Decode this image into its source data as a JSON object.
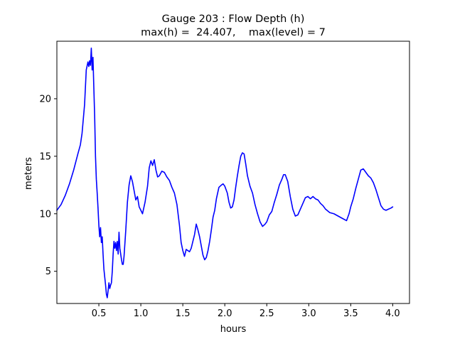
{
  "chart_data": {
    "type": "line",
    "title_line1": "Gauge 203 : Flow Depth (h)",
    "title_line2": "max(h) =  24.407,    max(level) = 7",
    "xlabel": "hours",
    "ylabel": "meters",
    "xlim": [
      0.0,
      4.2
    ],
    "ylim": [
      2.2,
      25.0
    ],
    "xticks": [
      0.5,
      1.0,
      1.5,
      2.0,
      2.5,
      3.0,
      3.5,
      4.0
    ],
    "xtick_labels": [
      "0.5",
      "1.0",
      "1.5",
      "2.0",
      "2.5",
      "3.0",
      "3.5",
      "4.0"
    ],
    "yticks": [
      5,
      10,
      15,
      20
    ],
    "ytick_labels": [
      "5",
      "10",
      "15",
      "20"
    ],
    "grid": false,
    "series": [
      {
        "color": "#0000ff",
        "x": [
          0.0,
          0.05,
          0.1,
          0.15,
          0.2,
          0.25,
          0.28,
          0.3,
          0.33,
          0.35,
          0.37,
          0.38,
          0.39,
          0.4,
          0.41,
          0.42,
          0.43,
          0.44,
          0.45,
          0.46,
          0.47,
          0.48,
          0.49,
          0.5,
          0.51,
          0.52,
          0.53,
          0.54,
          0.55,
          0.56,
          0.57,
          0.58,
          0.59,
          0.6,
          0.61,
          0.62,
          0.63,
          0.64,
          0.65,
          0.66,
          0.67,
          0.68,
          0.69,
          0.7,
          0.71,
          0.72,
          0.73,
          0.74,
          0.75,
          0.76,
          0.77,
          0.78,
          0.79,
          0.8,
          0.82,
          0.84,
          0.86,
          0.88,
          0.9,
          0.92,
          0.94,
          0.96,
          0.98,
          1.0,
          1.02,
          1.05,
          1.08,
          1.1,
          1.12,
          1.14,
          1.16,
          1.18,
          1.2,
          1.22,
          1.25,
          1.28,
          1.31,
          1.34,
          1.37,
          1.4,
          1.43,
          1.46,
          1.48,
          1.5,
          1.52,
          1.54,
          1.56,
          1.58,
          1.6,
          1.62,
          1.64,
          1.66,
          1.68,
          1.7,
          1.72,
          1.74,
          1.76,
          1.78,
          1.8,
          1.82,
          1.84,
          1.86,
          1.88,
          1.9,
          1.93,
          1.96,
          1.98,
          2.0,
          2.03,
          2.05,
          2.07,
          2.09,
          2.11,
          2.13,
          2.15,
          2.17,
          2.19,
          2.21,
          2.23,
          2.25,
          2.27,
          2.3,
          2.33,
          2.36,
          2.39,
          2.42,
          2.45,
          2.48,
          2.5,
          2.53,
          2.56,
          2.59,
          2.62,
          2.65,
          2.68,
          2.7,
          2.72,
          2.75,
          2.78,
          2.81,
          2.84,
          2.87,
          2.9,
          2.93,
          2.96,
          2.99,
          3.02,
          3.05,
          3.08,
          3.11,
          3.14,
          3.17,
          3.2,
          3.25,
          3.3,
          3.35,
          3.4,
          3.45,
          3.48,
          3.5,
          3.53,
          3.56,
          3.59,
          3.62,
          3.65,
          3.68,
          3.71,
          3.74,
          3.77,
          3.8,
          3.83,
          3.86,
          3.89,
          3.92,
          3.95,
          3.98,
          4.0
        ],
        "values": [
          10.3,
          10.8,
          11.6,
          12.6,
          13.8,
          15.2,
          16.0,
          17.0,
          19.5,
          22.5,
          23.2,
          22.8,
          23.3,
          22.9,
          24.4,
          22.5,
          23.6,
          21.0,
          18.5,
          15.0,
          13.0,
          11.8,
          10.5,
          9.0,
          8.0,
          8.8,
          7.5,
          8.0,
          6.5,
          5.2,
          4.5,
          3.8,
          3.0,
          2.7,
          3.3,
          4.0,
          3.5,
          3.8,
          4.0,
          5.0,
          6.5,
          7.6,
          7.0,
          7.5,
          6.8,
          7.6,
          6.5,
          8.4,
          7.0,
          6.5,
          6.0,
          5.6,
          5.6,
          6.3,
          8.5,
          11.0,
          12.5,
          13.3,
          12.8,
          12.0,
          11.2,
          11.5,
          10.6,
          10.3,
          10.0,
          11.0,
          12.4,
          14.0,
          14.6,
          14.2,
          14.7,
          13.8,
          13.2,
          13.3,
          13.7,
          13.6,
          13.2,
          12.9,
          12.3,
          11.8,
          10.8,
          9.0,
          7.5,
          6.8,
          6.3,
          6.9,
          6.8,
          6.7,
          7.0,
          7.6,
          8.2,
          9.1,
          8.6,
          8.0,
          7.2,
          6.4,
          6.0,
          6.2,
          6.8,
          7.6,
          8.6,
          9.7,
          10.3,
          11.3,
          12.3,
          12.5,
          12.6,
          12.4,
          11.8,
          11.0,
          10.5,
          10.6,
          11.2,
          12.3,
          13.3,
          14.2,
          15.0,
          15.3,
          15.2,
          14.3,
          13.3,
          12.4,
          11.8,
          10.8,
          10.0,
          9.3,
          8.9,
          9.1,
          9.3,
          9.9,
          10.2,
          11.0,
          11.7,
          12.5,
          13.0,
          13.4,
          13.4,
          12.8,
          11.5,
          10.4,
          9.8,
          9.9,
          10.4,
          10.9,
          11.4,
          11.5,
          11.3,
          11.5,
          11.3,
          11.2,
          10.9,
          10.7,
          10.4,
          10.1,
          10.0,
          9.8,
          9.6,
          9.4,
          10.0,
          10.6,
          11.3,
          12.2,
          13.0,
          13.8,
          13.9,
          13.6,
          13.3,
          13.1,
          12.7,
          12.1,
          11.4,
          10.7,
          10.4,
          10.3,
          10.4,
          10.5,
          10.6
        ]
      }
    ]
  }
}
